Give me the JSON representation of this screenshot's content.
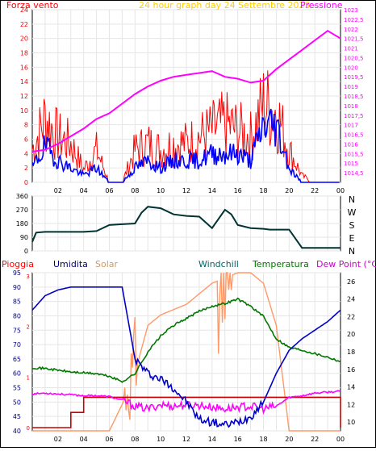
{
  "header": {
    "wind_title": "Forza vento",
    "center_title": "24 hour graph day   24 Settembre 2023",
    "pressure_title": "Pressione"
  },
  "bottom_legend": {
    "rain": "Pioggia",
    "humidity": "Umidita",
    "solar": "Solar",
    "windchill": "Windchill",
    "temperature": "Temperatura",
    "dewpoint": "Dew Point (°C)"
  },
  "x_ticks": [
    "02",
    "04",
    "06",
    "08",
    "10",
    "12",
    "14",
    "16",
    "18",
    "20",
    "22",
    "00"
  ],
  "colors": {
    "wind": "#ff0000",
    "wind_avg": "#0000ff",
    "pressure": "#ff00ff",
    "direction": "#003333",
    "humidity": "#0000cc",
    "solar": "#ff9966",
    "temperature": "#007700",
    "dewpoint": "#ff00ff",
    "rain": "#cc0000",
    "wind_axis": "#ff0000",
    "pressure_axis": "#ff00ff",
    "rain_axis": "#ff0000",
    "hum_axis": "#000088",
    "temp_axis": "#000000"
  },
  "chart_data": [
    {
      "type": "bar",
      "ylim_left": [
        0,
        24
      ],
      "ylim_right": [
        1014.0,
        1023.0
      ],
      "y_ticks_left": [
        "0",
        "2",
        "4",
        "6",
        "8",
        "10",
        "12",
        "14",
        "16",
        "18",
        "20",
        "22",
        "24"
      ],
      "y_ticks_right": [
        "1014,5",
        "1015",
        "1015,5",
        "1016",
        "1016,5",
        "1017",
        "1017,5",
        "1018",
        "1018,5",
        "1019",
        "1019,5",
        "1020",
        "1020,5",
        "1021",
        "1021,5",
        "1022",
        "1022,5",
        "1023"
      ],
      "x": [
        0,
        1,
        2,
        3,
        4,
        5,
        6,
        7,
        8,
        9,
        10,
        11,
        12,
        13,
        14,
        15,
        16,
        17,
        18,
        19,
        20,
        21,
        22,
        23,
        24
      ],
      "series": [
        {
          "name": "Forza vento",
          "values": [
            5,
            10,
            7,
            6,
            2,
            5,
            0,
            0,
            5,
            6,
            5,
            6,
            6,
            7,
            8,
            9,
            8,
            7,
            12,
            11,
            5,
            1,
            0,
            0,
            0
          ]
        },
        {
          "values": [
            2,
            5,
            3,
            2,
            1,
            2,
            0,
            0,
            2,
            3,
            2,
            3,
            3,
            3,
            4,
            4,
            4,
            3,
            8,
            8,
            2,
            0,
            0,
            0,
            0
          ]
        },
        {
          "name": "Pressione",
          "values": [
            1015.6,
            1015.7,
            1016.0,
            1016.4,
            1016.8,
            1017.3,
            1017.6,
            1018.1,
            1018.6,
            1019.0,
            1019.3,
            1019.5,
            1019.6,
            1019.7,
            1019.8,
            1019.5,
            1019.4,
            1019.2,
            1019.3,
            1019.9,
            1020.4,
            1020.9,
            1021.4,
            1021.9,
            1021.5
          ]
        }
      ]
    },
    {
      "type": "line",
      "ylim": [
        0,
        360
      ],
      "y_ticks": [
        "0",
        "90",
        "180",
        "270",
        "360"
      ],
      "right_labels": [
        "N",
        "W",
        "S",
        "E",
        "N"
      ],
      "x": [
        0,
        0.3,
        1,
        2,
        3,
        4,
        5,
        6,
        7,
        8,
        8.5,
        9,
        10,
        11,
        12,
        13,
        14,
        15,
        15.5,
        16,
        17,
        18,
        18.5,
        19,
        20,
        21,
        22,
        23,
        24
      ],
      "values": [
        60,
        120,
        125,
        125,
        125,
        125,
        130,
        170,
        175,
        180,
        250,
        290,
        280,
        240,
        230,
        225,
        150,
        270,
        240,
        170,
        150,
        145,
        140,
        140,
        140,
        20,
        20,
        20,
        20
      ]
    },
    {
      "type": "line",
      "ylim_left": [
        40,
        95
      ],
      "ylim_right": [
        9,
        27
      ],
      "y_ticks_left": [
        "40",
        "45",
        "50",
        "55",
        "60",
        "65",
        "70",
        "75",
        "80",
        "85",
        "90",
        "95"
      ],
      "y_ticks_right": [
        "10",
        "12",
        "14",
        "16",
        "18",
        "20",
        "22",
        "24",
        "26"
      ],
      "y_ticks_rain": [
        "0",
        "1",
        "2",
        "3"
      ],
      "x": [
        0,
        1,
        2,
        3,
        4,
        5,
        6,
        7,
        8,
        9,
        10,
        11,
        12,
        13,
        14,
        15,
        16,
        17,
        18,
        19,
        20,
        21,
        22,
        23,
        24
      ],
      "series": [
        {
          "name": "Umidita",
          "values": [
            82,
            87,
            89,
            90,
            90,
            90,
            90,
            90,
            65,
            60,
            58,
            55,
            50,
            44,
            43,
            42,
            43,
            45,
            50,
            60,
            68,
            72,
            75,
            78,
            82
          ]
        },
        {
          "name": "Solar",
          "values": [
            0,
            0,
            0,
            0,
            0,
            0,
            0,
            500,
            1100,
            2000,
            2200,
            2300,
            2400,
            2600,
            2800,
            2900,
            3000,
            3000,
            2800,
            2000,
            0,
            0,
            0,
            0,
            0
          ]
        },
        {
          "name": "Temperatura",
          "values": [
            16.2,
            16.1,
            15.9,
            15.7,
            15.6,
            15.5,
            15.2,
            14.6,
            15.5,
            18.0,
            19.8,
            21.0,
            21.8,
            22.6,
            23.2,
            23.5,
            24.0,
            23.2,
            22.0,
            19.5,
            18.5,
            18.2,
            17.8,
            17.4,
            16.9
          ]
        },
        {
          "name": "Dew Point (°C)",
          "values": [
            13.2,
            13.3,
            13.2,
            13.1,
            13.0,
            13.0,
            12.9,
            12.5,
            11.8,
            11.5,
            12.0,
            11.8,
            12.0,
            11.9,
            11.7,
            11.5,
            11.7,
            11.8,
            11.5,
            11.8,
            12.8,
            13.0,
            13.3,
            13.4,
            13.5
          ]
        },
        {
          "name": "Pioggia",
          "values": [
            0,
            0,
            0,
            0.3,
            0.6,
            0.6,
            0.6,
            0.6,
            0.6,
            0.6,
            0.6,
            0.6,
            0.6,
            0.6,
            0.6,
            0.6,
            0.6,
            0.6,
            0.6,
            0.6,
            0.6,
            0.6,
            0.6,
            0.6,
            0.0
          ]
        }
      ]
    }
  ]
}
